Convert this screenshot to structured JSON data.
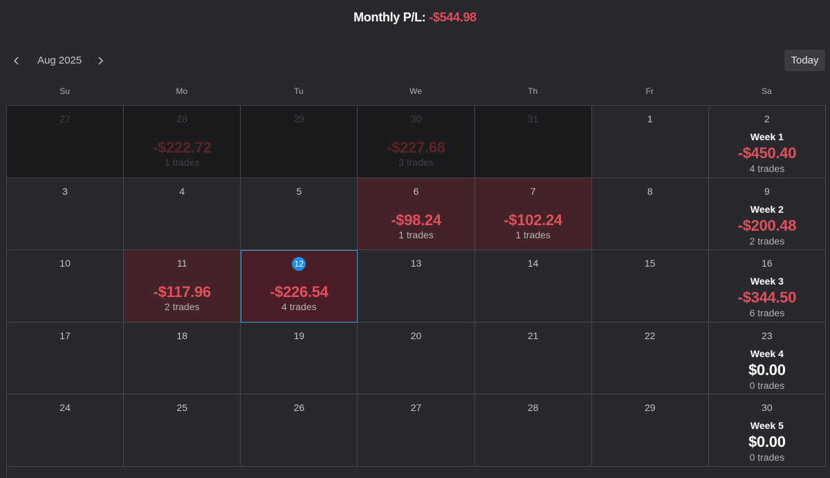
{
  "header": {
    "monthly_label": "Monthly P/L:",
    "monthly_value": "-$544.98"
  },
  "toolbar": {
    "month": "Aug 2025",
    "today_label": "Today",
    "prev_icon": "chevron-left-icon",
    "next_icon": "chevron-right-icon"
  },
  "weekdays": [
    "Su",
    "Mo",
    "Tu",
    "We",
    "Th",
    "Fr",
    "Sa"
  ],
  "colors": {
    "loss": "#e0505c",
    "loss_cell": "#442328",
    "today_cell": "#4b1e27",
    "today_badge": "#1a8fdc",
    "background": "#29282d"
  },
  "weeks": [
    {
      "days": [
        {
          "day": "27",
          "outside": true,
          "pl": "",
          "trades": ""
        },
        {
          "day": "28",
          "outside": true,
          "pl": "-$222.72",
          "trades": "1 trades"
        },
        {
          "day": "29",
          "outside": true,
          "pl": "",
          "trades": ""
        },
        {
          "day": "30",
          "outside": true,
          "pl": "-$227.68",
          "trades": "3 trades"
        },
        {
          "day": "31",
          "outside": true,
          "pl": "",
          "trades": ""
        },
        {
          "day": "1",
          "outside": false,
          "pl": "",
          "trades": ""
        }
      ],
      "sat": {
        "day": "2",
        "week_label": "Week 1",
        "pl": "-$450.40",
        "trades": "4 trades"
      }
    },
    {
      "days": [
        {
          "day": "3",
          "pl": "",
          "trades": ""
        },
        {
          "day": "4",
          "pl": "",
          "trades": ""
        },
        {
          "day": "5",
          "pl": "",
          "trades": ""
        },
        {
          "day": "6",
          "pl": "-$98.24",
          "trades": "1 trades"
        },
        {
          "day": "7",
          "pl": "-$102.24",
          "trades": "1 trades"
        },
        {
          "day": "8",
          "pl": "",
          "trades": ""
        }
      ],
      "sat": {
        "day": "9",
        "week_label": "Week 2",
        "pl": "-$200.48",
        "trades": "2 trades"
      }
    },
    {
      "days": [
        {
          "day": "10",
          "pl": "",
          "trades": ""
        },
        {
          "day": "11",
          "pl": "-$117.96",
          "trades": "2 trades"
        },
        {
          "day": "12",
          "pl": "-$226.54",
          "trades": "4 trades",
          "today": true
        },
        {
          "day": "13",
          "pl": "",
          "trades": ""
        },
        {
          "day": "14",
          "pl": "",
          "trades": ""
        },
        {
          "day": "15",
          "pl": "",
          "trades": ""
        }
      ],
      "sat": {
        "day": "16",
        "week_label": "Week 3",
        "pl": "-$344.50",
        "trades": "6 trades"
      }
    },
    {
      "days": [
        {
          "day": "17",
          "pl": "",
          "trades": ""
        },
        {
          "day": "18",
          "pl": "",
          "trades": ""
        },
        {
          "day": "19",
          "pl": "",
          "trades": ""
        },
        {
          "day": "20",
          "pl": "",
          "trades": ""
        },
        {
          "day": "21",
          "pl": "",
          "trades": ""
        },
        {
          "day": "22",
          "pl": "",
          "trades": ""
        }
      ],
      "sat": {
        "day": "23",
        "week_label": "Week 4",
        "pl": "$0.00",
        "trades": "0 trades"
      }
    },
    {
      "days": [
        {
          "day": "24",
          "pl": "",
          "trades": ""
        },
        {
          "day": "25",
          "pl": "",
          "trades": ""
        },
        {
          "day": "26",
          "pl": "",
          "trades": ""
        },
        {
          "day": "27",
          "pl": "",
          "trades": ""
        },
        {
          "day": "28",
          "pl": "",
          "trades": ""
        },
        {
          "day": "29",
          "pl": "",
          "trades": ""
        }
      ],
      "sat": {
        "day": "30",
        "week_label": "Week 5",
        "pl": "$0.00",
        "trades": "0 trades"
      }
    }
  ]
}
